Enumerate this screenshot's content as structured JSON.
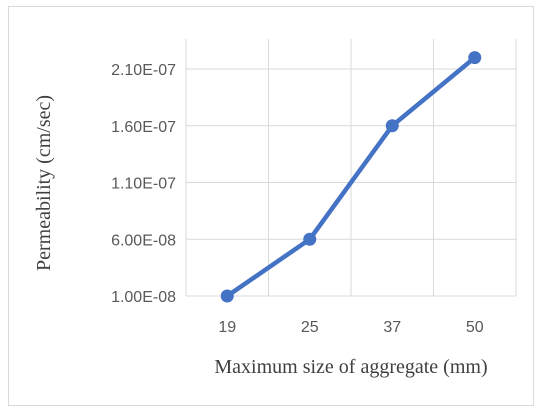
{
  "chart_data": {
    "type": "line",
    "categories": [
      "19",
      "25",
      "37",
      "50"
    ],
    "series": [
      {
        "values": [
          1e-08,
          6e-08,
          1.6e-07,
          2.2e-07
        ]
      }
    ],
    "xlabel": "Maximum size of aggregate (mm)",
    "ylabel": "Permeability (cm/sec)",
    "yticks": [
      "1.00E-08",
      "6.00E-08",
      "1.10E-07",
      "1.60E-07",
      "2.10E-07"
    ],
    "ytick_values": [
      1e-08,
      6e-08,
      1.1e-07,
      1.6e-07,
      2.1e-07
    ],
    "ylim": [
      1e-08,
      2.1e-07
    ],
    "grid": true,
    "legend": "none",
    "line_color": "#4472C4",
    "grid_color": "#d9d9d9"
  }
}
